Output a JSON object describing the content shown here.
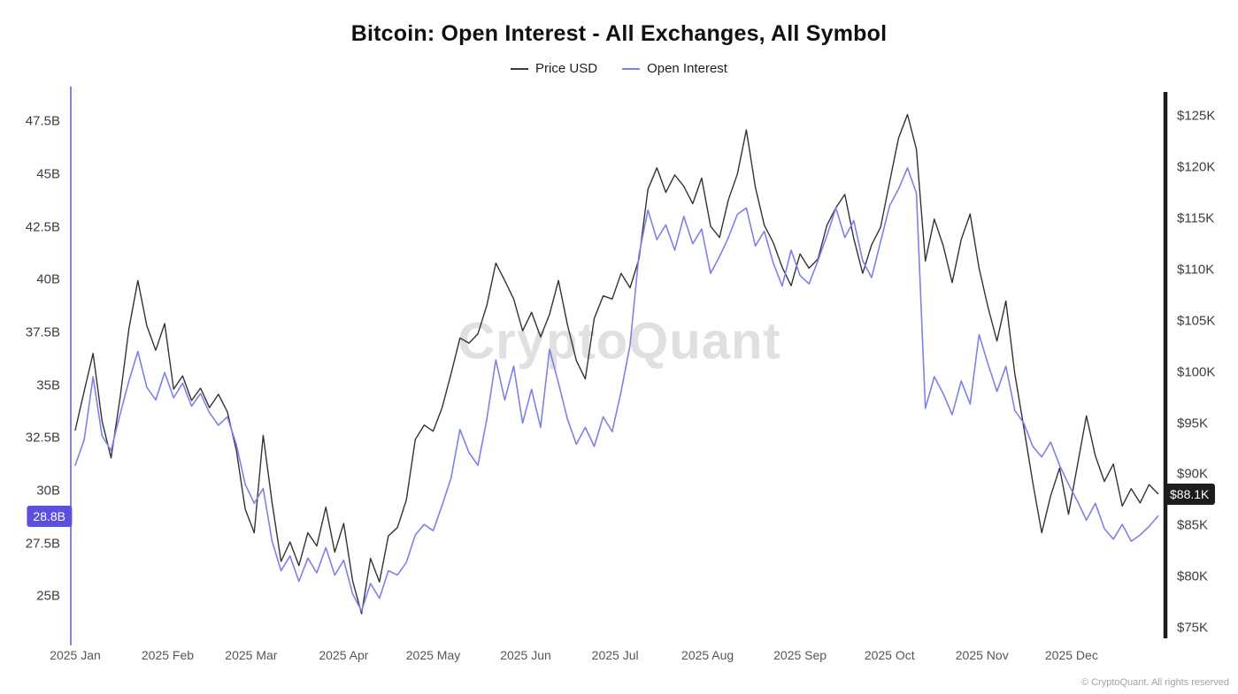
{
  "header": {
    "title": "Bitcoin: Open Interest - All Exchanges, All Symbol"
  },
  "legend": {
    "items": [
      {
        "label": "Price USD",
        "color": "#3a3a3a"
      },
      {
        "label": "Open Interest",
        "color": "#7e81e8"
      }
    ]
  },
  "watermark": {
    "text": "CryptoQuant"
  },
  "footer": {
    "copyright": "© CryptoQuant. All rights reserved"
  },
  "chart_data": {
    "type": "line",
    "title": "Bitcoin: Open Interest - All Exchanges, All Symbol",
    "legend_position": "top",
    "grid": false,
    "x_axis": {
      "tick_labels": [
        "2025 Jan",
        "2025 Feb",
        "2025 Mar",
        "2025 Apr",
        "2025 May",
        "2025 Jun",
        "2025 Jul",
        "2025 Aug",
        "2025 Sep",
        "2025 Oct",
        "2025 Nov",
        "2025 Dec"
      ],
      "tick_days": [
        0,
        31,
        59,
        90,
        120,
        151,
        181,
        212,
        243,
        273,
        304,
        334
      ],
      "total_days": 365
    },
    "left_axis": {
      "series": "Open Interest",
      "unit": "B",
      "ticks": [
        25,
        27.5,
        30,
        32.5,
        35,
        37.5,
        40,
        42.5,
        45,
        47.5
      ],
      "tick_labels": [
        "25B",
        "27.5B",
        "30B",
        "32.5B",
        "35B",
        "37.5B",
        "40B",
        "42.5B",
        "45B",
        "47.5B"
      ],
      "range": [
        23.0,
        48.9
      ],
      "axis_color": "#7e81e8",
      "current_value": 28.8,
      "current_label": "28.8B",
      "badge_color": "#5a4fdf"
    },
    "right_axis": {
      "series": "Price USD",
      "unit": "$K",
      "ticks": [
        75,
        80,
        85,
        90,
        95,
        100,
        105,
        110,
        115,
        120,
        125
      ],
      "tick_labels": [
        "$75K",
        "$80K",
        "$85K",
        "$90K",
        "$95K",
        "$100K",
        "$105K",
        "$110K",
        "$115K",
        "$120K",
        "$125K"
      ],
      "range": [
        74.0,
        127.3
      ],
      "axis_color": "#1c1c1c",
      "current_value": 88.1,
      "current_label": "$88.1K",
      "badge_color": "#1c1c1c"
    },
    "sample_days": [
      0,
      3,
      6,
      9,
      12,
      15,
      18,
      21,
      24,
      27,
      30,
      33,
      36,
      39,
      42,
      45,
      48,
      51,
      54,
      57,
      60,
      63,
      66,
      69,
      72,
      75,
      78,
      81,
      84,
      87,
      90,
      93,
      96,
      99,
      102,
      105,
      108,
      111,
      114,
      117,
      120,
      123,
      126,
      129,
      132,
      135,
      138,
      141,
      144,
      147,
      150,
      153,
      156,
      159,
      162,
      165,
      168,
      171,
      174,
      177,
      180,
      183,
      186,
      189,
      192,
      195,
      198,
      201,
      204,
      207,
      210,
      213,
      216,
      219,
      222,
      225,
      228,
      231,
      234,
      237,
      240,
      243,
      246,
      249,
      252,
      255,
      258,
      261,
      264,
      267,
      270,
      273,
      276,
      279,
      282,
      285,
      288,
      291,
      294,
      297,
      300,
      303,
      306,
      309,
      312,
      315,
      318,
      321,
      324,
      327,
      330,
      333,
      336,
      339,
      342,
      345,
      348,
      351,
      354,
      357,
      360,
      363
    ],
    "series": [
      {
        "name": "Price USD",
        "axis": "right",
        "color": "#333333",
        "width": 1.4,
        "values": [
          94.3,
          98.1,
          101.8,
          95.2,
          91.6,
          97.4,
          104.2,
          108.9,
          104.5,
          102.1,
          104.7,
          98.3,
          99.6,
          97.2,
          98.4,
          96.5,
          97.8,
          96.1,
          92.4,
          86.6,
          84.3,
          93.8,
          87.2,
          81.5,
          83.4,
          81.1,
          84.3,
          83.0,
          86.8,
          82.4,
          85.2,
          79.6,
          76.4,
          81.8,
          79.5,
          84.0,
          84.8,
          87.5,
          93.4,
          94.8,
          94.2,
          96.5,
          99.8,
          103.3,
          102.8,
          103.7,
          106.5,
          110.6,
          108.9,
          107.1,
          104.0,
          105.8,
          103.4,
          105.6,
          108.9,
          104.6,
          101.1,
          99.3,
          105.2,
          107.4,
          107.1,
          109.6,
          108.2,
          111.0,
          117.8,
          119.9,
          117.5,
          119.2,
          118.1,
          116.4,
          118.9,
          114.2,
          113.1,
          116.8,
          119.3,
          123.6,
          118.0,
          114.3,
          112.6,
          110.2,
          108.4,
          111.5,
          110.1,
          111.0,
          114.3,
          116.0,
          117.3,
          113.0,
          109.6,
          112.4,
          114.1,
          118.5,
          122.8,
          125.1,
          121.7,
          110.8,
          114.9,
          112.3,
          108.7,
          112.9,
          115.4,
          110.1,
          106.3,
          103.0,
          106.9,
          99.8,
          94.6,
          89.2,
          84.3,
          87.9,
          90.6,
          86.1,
          90.9,
          95.7,
          91.8,
          89.3,
          91.0,
          86.9,
          88.6,
          87.2,
          89.0,
          88.1
        ]
      },
      {
        "name": "Open Interest",
        "axis": "left",
        "color": "#7e81e8",
        "width": 1.6,
        "values": [
          31.2,
          32.4,
          35.4,
          32.6,
          31.9,
          33.6,
          35.2,
          36.6,
          34.9,
          34.3,
          35.6,
          34.4,
          35.1,
          34.0,
          34.6,
          33.7,
          33.1,
          33.5,
          32.2,
          30.3,
          29.4,
          30.1,
          27.6,
          26.2,
          26.9,
          25.7,
          26.8,
          26.1,
          27.3,
          26.0,
          26.7,
          25.1,
          24.3,
          25.6,
          24.9,
          26.2,
          26.0,
          26.6,
          27.9,
          28.4,
          28.1,
          29.3,
          30.6,
          32.9,
          31.8,
          31.2,
          33.4,
          36.2,
          34.3,
          35.9,
          33.2,
          34.8,
          33.0,
          36.7,
          35.1,
          33.4,
          32.2,
          33.0,
          32.1,
          33.5,
          32.8,
          34.7,
          36.9,
          41.2,
          43.3,
          41.9,
          42.6,
          41.4,
          43.0,
          41.7,
          42.4,
          40.3,
          41.1,
          42.0,
          43.1,
          43.4,
          41.6,
          42.3,
          40.8,
          39.7,
          41.4,
          40.2,
          39.8,
          40.9,
          42.1,
          43.4,
          42.0,
          42.8,
          40.9,
          40.1,
          41.8,
          43.5,
          44.3,
          45.3,
          44.1,
          33.9,
          35.4,
          34.6,
          33.6,
          35.2,
          34.1,
          37.4,
          36.0,
          34.7,
          35.9,
          33.8,
          33.2,
          32.1,
          31.6,
          32.3,
          31.2,
          30.3,
          29.5,
          28.6,
          29.4,
          28.2,
          27.7,
          28.4,
          27.6,
          27.9,
          28.3,
          28.8
        ]
      }
    ]
  }
}
